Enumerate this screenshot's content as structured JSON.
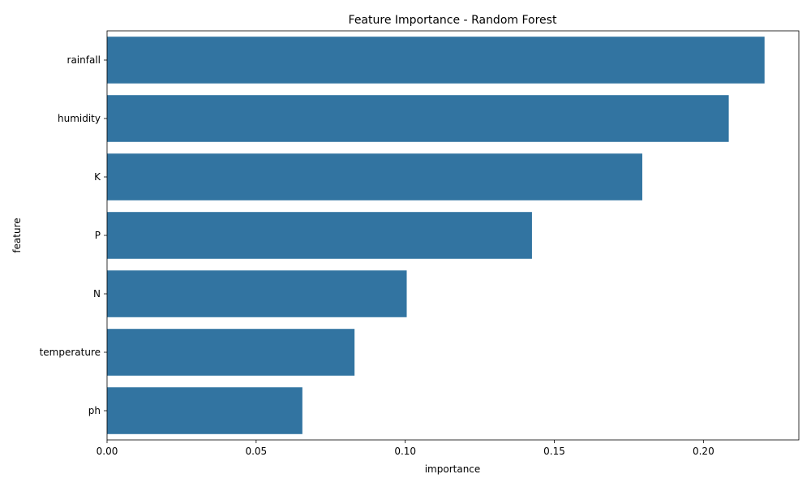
{
  "chart_data": {
    "type": "bar",
    "orientation": "horizontal",
    "title": "Feature Importance - Random Forest",
    "xlabel": "importance",
    "ylabel": "feature",
    "categories": [
      "rainfall",
      "humidity",
      "K",
      "P",
      "N",
      "temperature",
      "ph"
    ],
    "values": [
      0.2205,
      0.2085,
      0.1795,
      0.1425,
      0.1005,
      0.083,
      0.0655
    ],
    "xlim": [
      0,
      0.232
    ],
    "xticks": [
      0.0,
      0.05,
      0.1,
      0.15,
      0.2
    ],
    "xtick_labels": [
      "0.00",
      "0.05",
      "0.10",
      "0.15",
      "0.20"
    ],
    "bar_color": "#3274a1",
    "grid": false,
    "legend": "none"
  }
}
